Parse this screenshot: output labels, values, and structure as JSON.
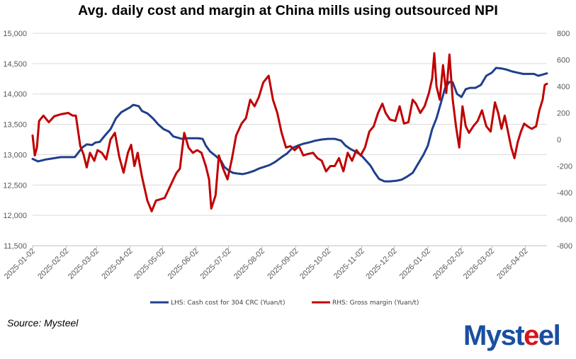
{
  "source": "Source: Mysteel",
  "logo_text": "Mysteel",
  "colors": {
    "lhs": "#1f3f8c",
    "rhs": "#c00000",
    "logo_blue": "#1a4fa0",
    "logo_red": "#d7141a"
  },
  "chart_data": {
    "type": "line",
    "title": "Avg. daily cost and margin at China mills using outsourced NPI",
    "x_ticks": [
      "2025-01-02",
      "2025-02-02",
      "2025-03-02",
      "2025-04-02",
      "2025-05-02",
      "2025-06-02",
      "2025-07-02",
      "2025-08-02",
      "2025-09-02",
      "2025-10-02",
      "2025-11-02",
      "2025-12-02",
      "2026-01-02",
      "2026-02-02",
      "2026-03-02",
      "2026-04-02"
    ],
    "x_range": [
      "2025-01-02",
      "2026-04-22"
    ],
    "y_left": {
      "min": 11500,
      "max": 15000,
      "step": 500,
      "tick_labels": [
        "11,500",
        "12,000",
        "12,500",
        "13,000",
        "13,500",
        "14,000",
        "14,500",
        "15,000"
      ]
    },
    "y_right": {
      "min": -800,
      "max": 800,
      "step": 200,
      "tick_labels": [
        "-800",
        "-600",
        "-400",
        "-200",
        "0",
        "200",
        "400",
        "600",
        "800"
      ]
    },
    "legend": "bottom-center",
    "series": [
      {
        "name": "LHS: Cash cost for 304 CRC (Yuan/t)",
        "axis": "left",
        "points": [
          [
            "2025-01-02",
            12930
          ],
          [
            "2025-01-07",
            12890
          ],
          [
            "2025-01-14",
            12920
          ],
          [
            "2025-01-21",
            12940
          ],
          [
            "2025-01-28",
            12960
          ],
          [
            "2025-02-05",
            12960
          ],
          [
            "2025-02-10",
            12960
          ],
          [
            "2025-02-14",
            13050
          ],
          [
            "2025-02-17",
            13120
          ],
          [
            "2025-02-21",
            13170
          ],
          [
            "2025-02-26",
            13160
          ],
          [
            "2025-03-01",
            13200
          ],
          [
            "2025-03-05",
            13210
          ],
          [
            "2025-03-10",
            13320
          ],
          [
            "2025-03-15",
            13420
          ],
          [
            "2025-03-20",
            13600
          ],
          [
            "2025-03-25",
            13700
          ],
          [
            "2025-03-30",
            13750
          ],
          [
            "2025-04-02",
            13780
          ],
          [
            "2025-04-05",
            13820
          ],
          [
            "2025-04-10",
            13800
          ],
          [
            "2025-04-13",
            13720
          ],
          [
            "2025-04-18",
            13680
          ],
          [
            "2025-04-23",
            13600
          ],
          [
            "2025-04-28",
            13500
          ],
          [
            "2025-05-03",
            13420
          ],
          [
            "2025-05-08",
            13380
          ],
          [
            "2025-05-12",
            13300
          ],
          [
            "2025-05-16",
            13280
          ],
          [
            "2025-05-20",
            13260
          ],
          [
            "2025-05-25",
            13270
          ],
          [
            "2025-05-30",
            13270
          ],
          [
            "2025-06-04",
            13270
          ],
          [
            "2025-06-08",
            13260
          ],
          [
            "2025-06-11",
            13150
          ],
          [
            "2025-06-15",
            13050
          ],
          [
            "2025-06-20",
            12980
          ],
          [
            "2025-06-25",
            12900
          ],
          [
            "2025-06-28",
            12800
          ],
          [
            "2025-07-02",
            12740
          ],
          [
            "2025-07-06",
            12700
          ],
          [
            "2025-07-10",
            12690
          ],
          [
            "2025-07-15",
            12680
          ],
          [
            "2025-07-20",
            12700
          ],
          [
            "2025-07-25",
            12730
          ],
          [
            "2025-07-30",
            12770
          ],
          [
            "2025-08-04",
            12800
          ],
          [
            "2025-08-09",
            12830
          ],
          [
            "2025-08-14",
            12880
          ],
          [
            "2025-08-20",
            12960
          ],
          [
            "2025-08-25",
            13020
          ],
          [
            "2025-08-30",
            13110
          ],
          [
            "2025-09-04",
            13150
          ],
          [
            "2025-09-09",
            13180
          ],
          [
            "2025-09-14",
            13200
          ],
          [
            "2025-09-20",
            13230
          ],
          [
            "2025-09-26",
            13250
          ],
          [
            "2025-10-02",
            13260
          ],
          [
            "2025-10-08",
            13260
          ],
          [
            "2025-10-14",
            13230
          ],
          [
            "2025-10-18",
            13150
          ],
          [
            "2025-10-22",
            13100
          ],
          [
            "2025-10-27",
            13050
          ],
          [
            "2025-11-01",
            13000
          ],
          [
            "2025-11-05",
            12920
          ],
          [
            "2025-11-10",
            12820
          ],
          [
            "2025-11-14",
            12700
          ],
          [
            "2025-11-18",
            12600
          ],
          [
            "2025-11-23",
            12560
          ],
          [
            "2025-11-28",
            12560
          ],
          [
            "2025-12-04",
            12570
          ],
          [
            "2025-12-09",
            12590
          ],
          [
            "2025-12-14",
            12640
          ],
          [
            "2025-12-19",
            12700
          ],
          [
            "2025-12-24",
            12850
          ],
          [
            "2025-12-29",
            13000
          ],
          [
            "2026-01-02",
            13150
          ],
          [
            "2026-01-06",
            13420
          ],
          [
            "2026-01-10",
            13600
          ],
          [
            "2026-01-14",
            13850
          ],
          [
            "2026-01-18",
            14100
          ],
          [
            "2026-01-22",
            14200
          ],
          [
            "2026-01-25",
            14190
          ],
          [
            "2026-01-29",
            14000
          ],
          [
            "2026-02-02",
            13950
          ],
          [
            "2026-02-06",
            14080
          ],
          [
            "2026-02-10",
            14100
          ],
          [
            "2026-02-15",
            14100
          ],
          [
            "2026-02-20",
            14150
          ],
          [
            "2026-02-25",
            14300
          ],
          [
            "2026-03-02",
            14350
          ],
          [
            "2026-03-06",
            14430
          ],
          [
            "2026-03-11",
            14420
          ],
          [
            "2026-03-16",
            14400
          ],
          [
            "2026-03-21",
            14370
          ],
          [
            "2026-03-26",
            14350
          ],
          [
            "2026-03-31",
            14330
          ],
          [
            "2026-04-05",
            14330
          ],
          [
            "2026-04-10",
            14330
          ],
          [
            "2026-04-14",
            14300
          ],
          [
            "2026-04-18",
            14320
          ],
          [
            "2026-04-22",
            14340
          ]
        ]
      },
      {
        "name": "RHS: Gross margin (Yuan/t)",
        "axis": "right",
        "points": [
          [
            "2025-01-02",
            30
          ],
          [
            "2025-01-04",
            -120
          ],
          [
            "2025-01-06",
            -60
          ],
          [
            "2025-01-08",
            140
          ],
          [
            "2025-01-12",
            180
          ],
          [
            "2025-01-17",
            130
          ],
          [
            "2025-01-22",
            175
          ],
          [
            "2025-01-28",
            190
          ],
          [
            "2025-02-04",
            200
          ],
          [
            "2025-02-08",
            180
          ],
          [
            "2025-02-11",
            180
          ],
          [
            "2025-02-15",
            -50
          ],
          [
            "2025-02-18",
            -110
          ],
          [
            "2025-02-21",
            -210
          ],
          [
            "2025-02-24",
            -100
          ],
          [
            "2025-02-28",
            -160
          ],
          [
            "2025-03-03",
            -80
          ],
          [
            "2025-03-07",
            -100
          ],
          [
            "2025-03-11",
            -150
          ],
          [
            "2025-03-15",
            0
          ],
          [
            "2025-03-19",
            50
          ],
          [
            "2025-03-23",
            -130
          ],
          [
            "2025-03-27",
            -250
          ],
          [
            "2025-03-31",
            -100
          ],
          [
            "2025-04-03",
            -40
          ],
          [
            "2025-04-06",
            -200
          ],
          [
            "2025-04-09",
            -100
          ],
          [
            "2025-04-13",
            -280
          ],
          [
            "2025-04-18",
            -460
          ],
          [
            "2025-04-22",
            -540
          ],
          [
            "2025-04-26",
            -460
          ],
          [
            "2025-04-30",
            -450
          ],
          [
            "2025-05-04",
            -440
          ],
          [
            "2025-05-08",
            -370
          ],
          [
            "2025-05-12",
            -300
          ],
          [
            "2025-05-15",
            -250
          ],
          [
            "2025-05-18",
            -220
          ],
          [
            "2025-05-22",
            50
          ],
          [
            "2025-05-26",
            -60
          ],
          [
            "2025-05-30",
            -100
          ],
          [
            "2025-06-03",
            -80
          ],
          [
            "2025-06-07",
            -100
          ],
          [
            "2025-06-11",
            -200
          ],
          [
            "2025-06-14",
            -300
          ],
          [
            "2025-06-16",
            -520
          ],
          [
            "2025-06-20",
            -420
          ],
          [
            "2025-06-23",
            -120
          ],
          [
            "2025-06-27",
            -220
          ],
          [
            "2025-07-01",
            -300
          ],
          [
            "2025-07-05",
            -150
          ],
          [
            "2025-07-09",
            30
          ],
          [
            "2025-07-14",
            120
          ],
          [
            "2025-07-18",
            160
          ],
          [
            "2025-07-22",
            300
          ],
          [
            "2025-07-26",
            250
          ],
          [
            "2025-07-30",
            320
          ],
          [
            "2025-08-03",
            430
          ],
          [
            "2025-08-08",
            480
          ],
          [
            "2025-08-12",
            300
          ],
          [
            "2025-08-16",
            200
          ],
          [
            "2025-08-20",
            50
          ],
          [
            "2025-08-24",
            -60
          ],
          [
            "2025-08-28",
            -50
          ],
          [
            "2025-09-01",
            -80
          ],
          [
            "2025-09-05",
            -50
          ],
          [
            "2025-09-09",
            -120
          ],
          [
            "2025-09-13",
            -110
          ],
          [
            "2025-09-18",
            -100
          ],
          [
            "2025-09-22",
            -140
          ],
          [
            "2025-09-26",
            -160
          ],
          [
            "2025-09-30",
            -240
          ],
          [
            "2025-10-04",
            -200
          ],
          [
            "2025-10-08",
            -200
          ],
          [
            "2025-10-12",
            -140
          ],
          [
            "2025-10-16",
            -240
          ],
          [
            "2025-10-20",
            -100
          ],
          [
            "2025-10-24",
            -160
          ],
          [
            "2025-10-28",
            -80
          ],
          [
            "2025-11-01",
            -120
          ],
          [
            "2025-11-05",
            -60
          ],
          [
            "2025-11-09",
            60
          ],
          [
            "2025-11-13",
            100
          ],
          [
            "2025-11-17",
            200
          ],
          [
            "2025-11-21",
            270
          ],
          [
            "2025-11-24",
            200
          ],
          [
            "2025-11-28",
            150
          ],
          [
            "2025-12-03",
            140
          ],
          [
            "2025-12-07",
            250
          ],
          [
            "2025-12-11",
            120
          ],
          [
            "2025-12-15",
            130
          ],
          [
            "2025-12-19",
            300
          ],
          [
            "2025-12-22",
            270
          ],
          [
            "2025-12-26",
            200
          ],
          [
            "2025-12-30",
            250
          ],
          [
            "2026-01-03",
            350
          ],
          [
            "2026-01-06",
            460
          ],
          [
            "2026-01-08",
            650
          ],
          [
            "2026-01-10",
            400
          ],
          [
            "2026-01-13",
            300
          ],
          [
            "2026-01-16",
            560
          ],
          [
            "2026-01-19",
            350
          ],
          [
            "2026-01-22",
            640
          ],
          [
            "2026-01-25",
            300
          ],
          [
            "2026-01-28",
            100
          ],
          [
            "2026-01-31",
            -60
          ],
          [
            "2026-02-03",
            250
          ],
          [
            "2026-02-06",
            100
          ],
          [
            "2026-02-09",
            50
          ],
          [
            "2026-02-13",
            100
          ],
          [
            "2026-02-17",
            140
          ],
          [
            "2026-02-21",
            220
          ],
          [
            "2026-02-25",
            100
          ],
          [
            "2026-03-01",
            60
          ],
          [
            "2026-03-05",
            280
          ],
          [
            "2026-03-08",
            200
          ],
          [
            "2026-03-11",
            80
          ],
          [
            "2026-03-14",
            180
          ],
          [
            "2026-03-17",
            60
          ],
          [
            "2026-03-20",
            -60
          ],
          [
            "2026-03-23",
            -140
          ],
          [
            "2026-03-26",
            -20
          ],
          [
            "2026-03-29",
            60
          ],
          [
            "2026-04-01",
            120
          ],
          [
            "2026-04-04",
            100
          ],
          [
            "2026-04-08",
            80
          ],
          [
            "2026-04-12",
            100
          ],
          [
            "2026-04-15",
            220
          ],
          [
            "2026-04-18",
            300
          ],
          [
            "2026-04-20",
            410
          ],
          [
            "2026-04-22",
            420
          ]
        ]
      }
    ]
  }
}
